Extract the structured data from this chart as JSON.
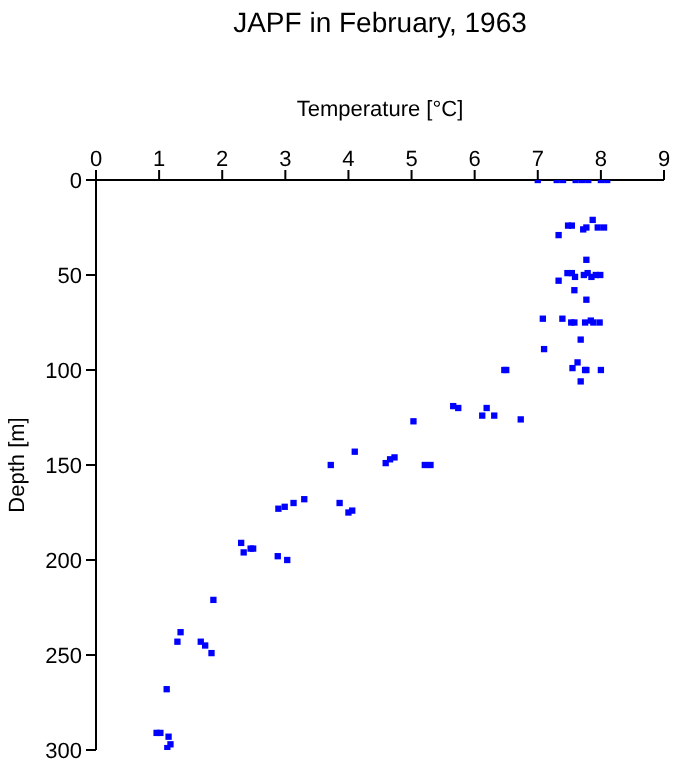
{
  "chart_data": {
    "type": "scatter",
    "title": "JAPF in February, 1963",
    "xlabel": "Temperature [°C]",
    "ylabel": "Depth [m]",
    "x": [
      7.0,
      7.3,
      7.4,
      7.6,
      7.7,
      7.8,
      8.0,
      8.1,
      7.87,
      7.54,
      7.48,
      7.77,
      7.72,
      7.95,
      8.05,
      7.33,
      7.77,
      7.47,
      7.54,
      7.59,
      7.73,
      7.79,
      7.85,
      7.92,
      7.99,
      7.33,
      7.58,
      7.77,
      7.08,
      7.39,
      7.53,
      7.58,
      7.75,
      7.84,
      7.88,
      7.98,
      7.68,
      7.1,
      6.47,
      6.5,
      7.63,
      7.55,
      7.75,
      7.77,
      8.0,
      7.68,
      5.66,
      5.74,
      6.19,
      6.12,
      6.31,
      6.73,
      5.03,
      4.1,
      3.72,
      4.59,
      4.66,
      4.73,
      5.21,
      5.3,
      2.89,
      2.99,
      3.13,
      3.3,
      3.86,
      4.0,
      4.06,
      2.3,
      2.34,
      2.45,
      2.49,
      2.88,
      3.03,
      1.86,
      1.34,
      1.29,
      1.66,
      1.73,
      1.83,
      1.12,
      0.96,
      1.02,
      1.15,
      1.18,
      1.13
    ],
    "values": [
      0,
      0,
      0,
      0,
      0,
      0,
      0,
      0,
      21,
      24,
      24,
      25,
      26,
      25,
      25,
      29,
      42,
      49,
      49,
      51,
      50,
      49,
      51,
      50,
      50,
      53,
      58,
      63,
      73,
      73,
      75,
      75,
      75,
      74,
      75,
      75,
      84,
      89,
      100,
      100,
      96,
      99,
      100,
      100,
      100,
      106,
      119,
      120,
      120,
      124,
      124,
      126,
      127,
      143,
      150,
      149,
      147,
      146,
      150,
      150,
      173,
      172,
      170,
      168,
      170,
      175,
      174,
      191,
      196,
      194,
      194,
      198,
      200,
      221,
      238,
      243,
      243,
      245,
      249,
      268,
      291,
      291,
      293,
      297,
      299
    ],
    "color": "#0000ff",
    "marker": "square",
    "xlim": [
      0,
      9
    ],
    "xticks": [
      0,
      1,
      2,
      3,
      4,
      5,
      6,
      7,
      8,
      9
    ],
    "ylim": [
      300,
      0
    ],
    "yticks": [
      0,
      50,
      100,
      150,
      200,
      250,
      300
    ]
  }
}
